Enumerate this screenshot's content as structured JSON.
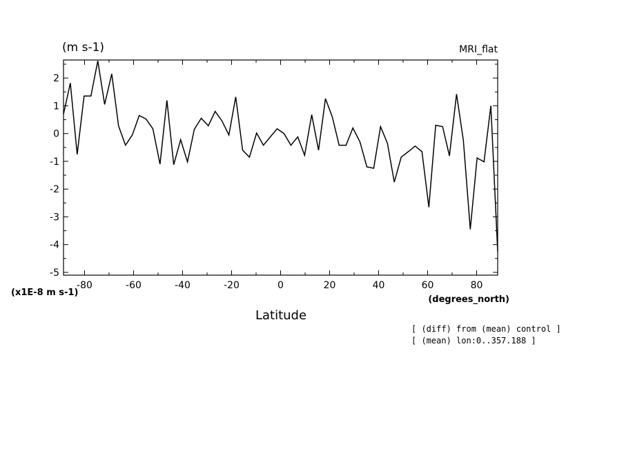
{
  "chart_data": {
    "type": "line",
    "title": "MRI_flat",
    "ylabel": "(m s-1)",
    "yscale_label": "(x1E-8 m s-1)",
    "xlabel": "Latitude",
    "xunits": "(degrees_north)",
    "xlim": [
      -88.59,
      88.59
    ],
    "ylim": [
      -5.1,
      2.65
    ],
    "xticks": [
      -80,
      -60,
      -40,
      -20,
      0,
      20,
      40,
      60,
      80
    ],
    "xtick_labels": [
      "-80",
      "-60",
      "-40",
      "-20",
      "0",
      "20",
      "40",
      "60",
      "80"
    ],
    "yticks": [
      -5,
      -4,
      -3,
      -2,
      -1,
      0,
      1,
      2
    ],
    "ytick_labels": [
      "-5",
      "-4",
      "-3",
      "-2",
      "-1",
      "0",
      "1",
      "2"
    ],
    "grid": false,
    "series": [
      {
        "x": [
          -88.6,
          -85.8,
          -83.0,
          -80.2,
          -77.4,
          -74.6,
          -71.8,
          -68.9,
          -66.1,
          -63.3,
          -60.5,
          -57.7,
          -54.9,
          -52.1,
          -49.2,
          -46.4,
          -43.6,
          -40.8,
          -38.0,
          -35.2,
          -32.4,
          -29.5,
          -26.7,
          -23.9,
          -21.1,
          -18.3,
          -15.5,
          -12.7,
          -9.8,
          -7.0,
          -4.2,
          -1.4,
          1.4,
          4.2,
          7.0,
          9.8,
          12.7,
          15.5,
          18.3,
          21.1,
          23.9,
          26.7,
          29.5,
          32.4,
          35.2,
          38.0,
          40.8,
          43.6,
          46.4,
          49.2,
          52.1,
          54.9,
          57.7,
          60.5,
          63.3,
          66.1,
          68.9,
          71.8,
          74.6,
          77.4,
          80.2,
          83.0,
          85.8,
          88.6
        ],
        "y": [
          0.7,
          1.82,
          -0.75,
          1.35,
          1.35,
          2.62,
          1.05,
          2.15,
          0.27,
          -0.42,
          -0.05,
          0.65,
          0.52,
          0.17,
          -1.1,
          1.2,
          -1.12,
          -0.22,
          -1.02,
          0.15,
          0.55,
          0.28,
          0.8,
          0.45,
          -0.05,
          1.32,
          -0.6,
          -0.85,
          0.02,
          -0.42,
          -0.12,
          0.17,
          0.0,
          -0.42,
          -0.12,
          -0.78,
          0.68,
          -0.6,
          1.26,
          0.6,
          -0.42,
          -0.42,
          0.2,
          -0.3,
          -1.2,
          -1.25,
          0.25,
          -0.35,
          -1.75,
          -0.85,
          -0.65,
          -0.45,
          -0.65,
          -2.65,
          0.3,
          0.25,
          -0.8,
          1.42,
          -0.25,
          -3.45,
          -0.88,
          -1.02,
          1.0,
          -4.25
        ]
      }
    ]
  },
  "annotations": {
    "line1": "[ (diff) from (mean) control ]",
    "line2": "[ (mean) lon:0..357.188 ]"
  }
}
